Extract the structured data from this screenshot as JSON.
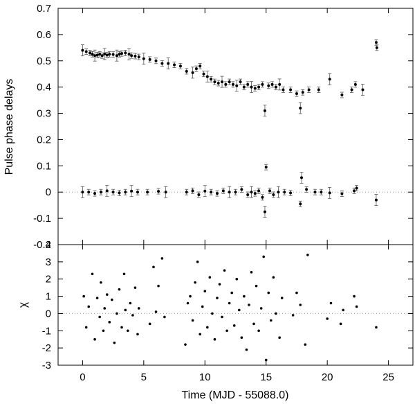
{
  "chart_data": [
    {
      "type": "scatter",
      "title": "",
      "xlabel": "",
      "ylabel": "Pulse phase delays",
      "xlim": [
        -2,
        27
      ],
      "ylim": [
        -0.2,
        0.7
      ],
      "xticks": [
        "0",
        "5",
        "10",
        "15",
        "20",
        "25"
      ],
      "yticks": [
        "-0.2",
        "-0.1",
        "0",
        "0.1",
        "0.2",
        "0.3",
        "0.4",
        "0.5",
        "0.6",
        "0.7"
      ],
      "reference_line_y": 0,
      "error_bars": true,
      "series": [
        {
          "points": [
            [
              0.0,
              0.54
            ],
            [
              0.3,
              0.535
            ],
            [
              0.6,
              0.53
            ],
            [
              0.8,
              0.525
            ],
            [
              1.0,
              0.52
            ],
            [
              1.2,
              0.522
            ],
            [
              1.4,
              0.525
            ],
            [
              1.6,
              0.52
            ],
            [
              1.8,
              0.526
            ],
            [
              2.0,
              0.522
            ],
            [
              2.2,
              0.525
            ],
            [
              2.5,
              0.524
            ],
            [
              2.8,
              0.52
            ],
            [
              3.0,
              0.525
            ],
            [
              3.2,
              0.528
            ],
            [
              3.5,
              0.53
            ],
            [
              3.8,
              0.525
            ],
            [
              4.0,
              0.52
            ],
            [
              4.3,
              0.518
            ],
            [
              4.6,
              0.515
            ],
            [
              5.0,
              0.508
            ],
            [
              5.5,
              0.505
            ],
            [
              6.0,
              0.5
            ],
            [
              6.5,
              0.49
            ],
            [
              7.0,
              0.49
            ],
            [
              7.5,
              0.485
            ],
            [
              8.0,
              0.48
            ],
            [
              8.5,
              0.46
            ],
            [
              9.0,
              0.455
            ],
            [
              9.3,
              0.47
            ],
            [
              9.6,
              0.48
            ],
            [
              9.9,
              0.45
            ],
            [
              10.2,
              0.44
            ],
            [
              10.5,
              0.43
            ],
            [
              10.8,
              0.42
            ],
            [
              11.1,
              0.415
            ],
            [
              11.4,
              0.42
            ],
            [
              11.7,
              0.41
            ],
            [
              12.0,
              0.42
            ],
            [
              12.3,
              0.41
            ],
            [
              12.6,
              0.405
            ],
            [
              12.9,
              0.42
            ],
            [
              13.2,
              0.4
            ],
            [
              13.5,
              0.41
            ],
            [
              13.8,
              0.4
            ],
            [
              14.1,
              0.395
            ],
            [
              14.4,
              0.4
            ],
            [
              14.7,
              0.41
            ],
            [
              14.9,
              0.31
            ],
            [
              15.2,
              0.405
            ],
            [
              15.5,
              0.41
            ],
            [
              15.8,
              0.4
            ],
            [
              16.1,
              0.41
            ],
            [
              16.4,
              0.39
            ],
            [
              17.0,
              0.39
            ],
            [
              17.5,
              0.375
            ],
            [
              17.8,
              0.32
            ],
            [
              18.0,
              0.38
            ],
            [
              18.5,
              0.39
            ],
            [
              19.3,
              0.39
            ],
            [
              20.2,
              0.43
            ],
            [
              21.2,
              0.37
            ],
            [
              22.0,
              0.39
            ],
            [
              22.3,
              0.41
            ],
            [
              22.9,
              0.39
            ],
            [
              24.0,
              0.57
            ],
            [
              24.05,
              0.55
            ]
          ],
          "values_approximate": true
        },
        {
          "points": [
            [
              0.0,
              0.0
            ],
            [
              0.5,
              0.0
            ],
            [
              1.0,
              -0.005
            ],
            [
              1.5,
              0.0
            ],
            [
              2.0,
              0.005
            ],
            [
              2.5,
              0.0
            ],
            [
              3.0,
              -0.003
            ],
            [
              3.5,
              0.0
            ],
            [
              4.0,
              0.004
            ],
            [
              4.5,
              0.0
            ],
            [
              5.3,
              0.0
            ],
            [
              6.2,
              0.003
            ],
            [
              6.8,
              0.0
            ],
            [
              8.5,
              0.0
            ],
            [
              9.0,
              0.005
            ],
            [
              9.5,
              -0.01
            ],
            [
              10.0,
              0.004
            ],
            [
              10.5,
              0.0
            ],
            [
              11.0,
              -0.005
            ],
            [
              11.5,
              0.005
            ],
            [
              12.0,
              0.0
            ],
            [
              12.5,
              0.0
            ],
            [
              13.0,
              0.01
            ],
            [
              13.5,
              -0.01
            ],
            [
              13.8,
              0.0
            ],
            [
              14.1,
              -0.005
            ],
            [
              14.4,
              0.005
            ],
            [
              14.7,
              -0.02
            ],
            [
              14.9,
              -0.075
            ],
            [
              15.0,
              0.095
            ],
            [
              15.3,
              0.005
            ],
            [
              15.6,
              -0.01
            ],
            [
              16.0,
              0.0
            ],
            [
              16.5,
              0.0
            ],
            [
              17.0,
              -0.003
            ],
            [
              17.8,
              -0.045
            ],
            [
              17.9,
              0.055
            ],
            [
              18.3,
              0.01
            ],
            [
              19.0,
              0.0
            ],
            [
              19.5,
              0.0
            ],
            [
              20.2,
              -0.003
            ],
            [
              21.2,
              -0.006
            ],
            [
              22.2,
              0.005
            ],
            [
              22.4,
              0.015
            ],
            [
              24.0,
              -0.03
            ]
          ],
          "values_approximate": true
        }
      ]
    },
    {
      "type": "scatter",
      "title": "",
      "xlabel": "Time (MJD - 55088.0)",
      "ylabel": "χ",
      "xlim": [
        -2,
        27
      ],
      "ylim": [
        -3,
        4
      ],
      "xticks": [
        "0",
        "5",
        "10",
        "15",
        "20",
        "25"
      ],
      "yticks": [
        "-3",
        "-2",
        "-1",
        "0",
        "1",
        "2",
        "3",
        "4"
      ],
      "reference_line_y": 0,
      "series": [
        {
          "points": [
            [
              0.1,
              1.0
            ],
            [
              0.3,
              -0.8
            ],
            [
              0.5,
              0.4
            ],
            [
              0.8,
              2.3
            ],
            [
              1.0,
              -1.5
            ],
            [
              1.2,
              0.9
            ],
            [
              1.4,
              -0.2
            ],
            [
              1.5,
              1.8
            ],
            [
              1.7,
              -1.0
            ],
            [
              1.8,
              0.3
            ],
            [
              2.0,
              1.1
            ],
            [
              2.2,
              -0.5
            ],
            [
              2.4,
              0.8
            ],
            [
              2.6,
              -1.7
            ],
            [
              2.8,
              0.0
            ],
            [
              3.0,
              1.4
            ],
            [
              3.2,
              -0.8
            ],
            [
              3.4,
              2.3
            ],
            [
              3.5,
              0.2
            ],
            [
              3.7,
              -1.0
            ],
            [
              3.9,
              0.6
            ],
            [
              4.1,
              -0.1
            ],
            [
              4.3,
              1.5
            ],
            [
              4.5,
              -1.2
            ],
            [
              4.6,
              0.3
            ],
            [
              5.5,
              -0.6
            ],
            [
              5.8,
              2.7
            ],
            [
              6.0,
              0.1
            ],
            [
              6.2,
              1.6
            ],
            [
              6.5,
              3.2
            ],
            [
              6.7,
              -0.2
            ],
            [
              8.4,
              -1.8
            ],
            [
              8.6,
              0.6
            ],
            [
              8.8,
              1.0
            ],
            [
              9.0,
              -0.4
            ],
            [
              9.2,
              1.8
            ],
            [
              9.4,
              3.0
            ],
            [
              9.6,
              -1.2
            ],
            [
              9.8,
              0.4
            ],
            [
              10.0,
              1.3
            ],
            [
              10.2,
              -0.8
            ],
            [
              10.4,
              2.1
            ],
            [
              10.6,
              0.0
            ],
            [
              10.8,
              -1.5
            ],
            [
              11.0,
              0.9
            ],
            [
              11.2,
              1.7
            ],
            [
              11.4,
              -0.2
            ],
            [
              11.6,
              2.5
            ],
            [
              11.8,
              -1.0
            ],
            [
              12.0,
              0.6
            ],
            [
              12.2,
              1.2
            ],
            [
              12.4,
              -0.7
            ],
            [
              12.6,
              2.0
            ],
            [
              12.8,
              0.2
            ],
            [
              13.0,
              -1.4
            ],
            [
              13.2,
              1.0
            ],
            [
              13.4,
              -2.1
            ],
            [
              13.6,
              0.5
            ],
            [
              13.8,
              2.4
            ],
            [
              14.0,
              -0.6
            ],
            [
              14.2,
              1.6
            ],
            [
              14.4,
              -1.0
            ],
            [
              14.6,
              0.3
            ],
            [
              14.8,
              3.3
            ],
            [
              15.0,
              -2.7
            ],
            [
              15.2,
              1.2
            ],
            [
              15.4,
              -0.4
            ],
            [
              15.6,
              2.1
            ],
            [
              15.8,
              0.0
            ],
            [
              16.1,
              -1.4
            ],
            [
              16.3,
              0.9
            ],
            [
              17.2,
              -0.1
            ],
            [
              17.5,
              1.2
            ],
            [
              17.8,
              0.5
            ],
            [
              18.2,
              -1.8
            ],
            [
              18.4,
              3.4
            ],
            [
              20.0,
              -0.3
            ],
            [
              20.3,
              0.6
            ],
            [
              21.1,
              -0.6
            ],
            [
              21.3,
              0.2
            ],
            [
              22.2,
              1.0
            ],
            [
              22.4,
              0.4
            ],
            [
              24.0,
              -0.8
            ]
          ],
          "values_approximate": true
        }
      ]
    }
  ]
}
